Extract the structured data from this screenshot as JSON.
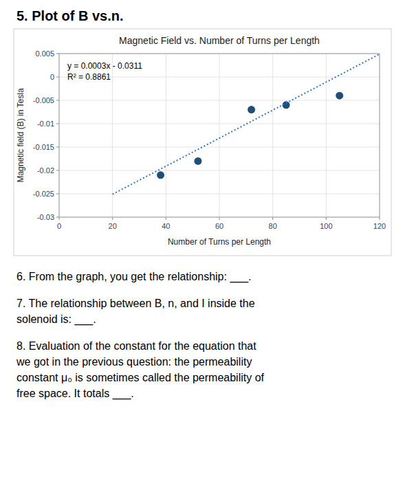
{
  "page_title": "5. Plot of B vs.n.",
  "chart_data": {
    "type": "scatter",
    "title": "Magnetic Field vs. Number of Turns per Length",
    "xlabel": "Number of Turns per Length",
    "ylabel": "Magnetic field (B) in Tesla",
    "series": [
      {
        "type": "scatter",
        "color": "#1f4e79",
        "x": [
          38,
          52,
          72,
          85,
          105
        ],
        "values": [
          -0.021,
          -0.018,
          -0.007,
          -0.006,
          -0.004
        ]
      },
      {
        "type": "line",
        "line_style": "dotted",
        "color": "#2e75b6",
        "x": [
          20,
          120
        ],
        "values": [
          -0.0251,
          0.0049
        ]
      }
    ],
    "annotations": [
      "y = 0.0003x - 0.0311",
      "R² = 0.8861"
    ],
    "xlim": [
      0,
      120
    ],
    "ylim": [
      -0.03,
      0.005
    ],
    "xticks": [
      0,
      20,
      40,
      60,
      80,
      100,
      120
    ],
    "yticks": [
      0.005,
      0,
      -0.005,
      -0.01,
      -0.015,
      -0.02,
      -0.025,
      -0.03
    ],
    "grid": true
  },
  "body_text": [
    [
      "6. From the graph, you get the relationship: ___."
    ],
    [
      "7. The relationship between B, n, and I inside the",
      "solenoid is: ___."
    ],
    [
      "8. Evaluation of the constant for the equation that",
      "we got in the previous question: the permeability",
      "constant μ₀ is sometimes called the permeability of",
      "free space. It totals ___."
    ]
  ]
}
